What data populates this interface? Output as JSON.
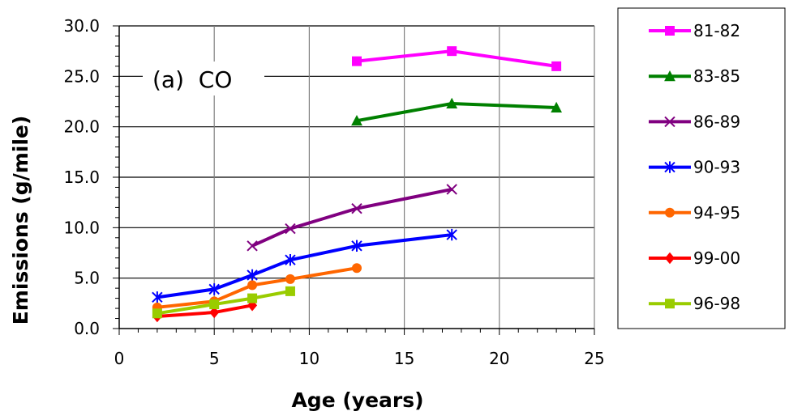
{
  "chart_data": {
    "type": "line",
    "title": "",
    "annotation": "(a)  CO",
    "xlabel": "Age (years)",
    "ylabel": "Emissions (g/mile)",
    "xlim": [
      0,
      25
    ],
    "ylim": [
      0,
      30
    ],
    "x_ticks": [
      "0",
      "5",
      "10",
      "15",
      "20",
      "25"
    ],
    "y_ticks": [
      "0.0",
      "5.0",
      "10.0",
      "15.0",
      "20.0",
      "25.0",
      "30.0"
    ],
    "grid": {
      "vertical": true,
      "horizontal": true
    },
    "legend_position": "right",
    "series": [
      {
        "name": "81-82",
        "color": "#ff00ff",
        "marker": "square",
        "points": [
          [
            12.5,
            26.5
          ],
          [
            17.5,
            27.5
          ],
          [
            23,
            26.0
          ]
        ]
      },
      {
        "name": "83-85",
        "color": "#008000",
        "marker": "triangle",
        "points": [
          [
            12.5,
            20.6
          ],
          [
            17.5,
            22.3
          ],
          [
            23,
            21.9
          ]
        ]
      },
      {
        "name": "86-89",
        "color": "#800080",
        "marker": "x",
        "points": [
          [
            7,
            8.2
          ],
          [
            9,
            9.9
          ],
          [
            12.5,
            11.9
          ],
          [
            17.5,
            13.8
          ]
        ]
      },
      {
        "name": "90-93",
        "color": "#0000ff",
        "marker": "asterisk",
        "points": [
          [
            2,
            3.1
          ],
          [
            5,
            3.9
          ],
          [
            7,
            5.3
          ],
          [
            9,
            6.8
          ],
          [
            12.5,
            8.2
          ],
          [
            17.5,
            9.3
          ]
        ]
      },
      {
        "name": "94-95",
        "color": "#ff6600",
        "marker": "circle",
        "points": [
          [
            2,
            2.1
          ],
          [
            5,
            2.7
          ],
          [
            7,
            4.3
          ],
          [
            9,
            4.9
          ],
          [
            12.5,
            6.0
          ]
        ]
      },
      {
        "name": "99-00",
        "color": "#ff0000",
        "marker": "diamond",
        "points": [
          [
            2,
            1.2
          ],
          [
            5,
            1.6
          ],
          [
            7,
            2.3
          ]
        ]
      },
      {
        "name": "96-98",
        "color": "#99cc00",
        "marker": "square",
        "points": [
          [
            2,
            1.5
          ],
          [
            5,
            2.4
          ],
          [
            7,
            3.0
          ],
          [
            9,
            3.7
          ]
        ]
      }
    ]
  }
}
